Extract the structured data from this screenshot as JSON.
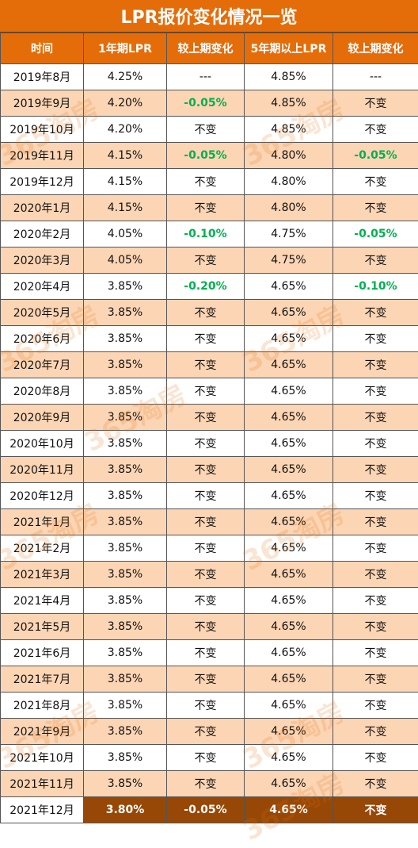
{
  "title": "LPR报价变化情况一览",
  "headers": [
    "时间",
    "1年期LPR",
    "较上期变化",
    "5年期以上LPR",
    "较上期变化"
  ],
  "rows": [
    [
      "2019年8月",
      "4.25%",
      "---",
      "4.85%",
      "---"
    ],
    [
      "2019年9月",
      "4.20%",
      "-0.05%",
      "4.85%",
      "不变"
    ],
    [
      "2019年10月",
      "4.20%",
      "不变",
      "4.85%",
      "不变"
    ],
    [
      "2019年11月",
      "4.15%",
      "-0.05%",
      "4.80%",
      "-0.05%"
    ],
    [
      "2019年12月",
      "4.15%",
      "不变",
      "4.80%",
      "不变"
    ],
    [
      "2020年1月",
      "4.15%",
      "不变",
      "4.80%",
      "不变"
    ],
    [
      "2020年2月",
      "4.05%",
      "-0.10%",
      "4.75%",
      "-0.05%"
    ],
    [
      "2020年3月",
      "4.05%",
      "不变",
      "4.75%",
      "不变"
    ],
    [
      "2020年4月",
      "3.85%",
      "-0.20%",
      "4.65%",
      "-0.10%"
    ],
    [
      "2020年5月",
      "3.85%",
      "不变",
      "4.65%",
      "不变"
    ],
    [
      "2020年6月",
      "3.85%",
      "不变",
      "4.65%",
      "不变"
    ],
    [
      "2020年7月",
      "3.85%",
      "不变",
      "4.65%",
      "不变"
    ],
    [
      "2020年8月",
      "3.85%",
      "不变",
      "4.65%",
      "不变"
    ],
    [
      "2020年9月",
      "3.85%",
      "不变",
      "4.65%",
      "不变"
    ],
    [
      "2020年10月",
      "3.85%",
      "不变",
      "4.65%",
      "不变"
    ],
    [
      "2020年11月",
      "3.85%",
      "不变",
      "4.65%",
      "不变"
    ],
    [
      "2020年12月",
      "3.85%",
      "不变",
      "4.65%",
      "不变"
    ],
    [
      "2021年1月",
      "3.85%",
      "不变",
      "4.65%",
      "不变"
    ],
    [
      "2021年2月",
      "3.85%",
      "不变",
      "4.65%",
      "不变"
    ],
    [
      "2021年3月",
      "3.85%",
      "不变",
      "4.65%",
      "不变"
    ],
    [
      "2021年4月",
      "3.85%",
      "不变",
      "4.65%",
      "不变"
    ],
    [
      "2021年5月",
      "3.85%",
      "不变",
      "4.65%",
      "不变"
    ],
    [
      "2021年6月",
      "3.85%",
      "不变",
      "4.65%",
      "不变"
    ],
    [
      "2021年7月",
      "3.85%",
      "不变",
      "4.65%",
      "不变"
    ],
    [
      "2021年8月",
      "3.85%",
      "不变",
      "4.65%",
      "不变"
    ],
    [
      "2021年9月",
      "3.85%",
      "不变",
      "4.65%",
      "不变"
    ],
    [
      "2021年10月",
      "3.85%",
      "不变",
      "4.65%",
      "不变"
    ],
    [
      "2021年11月",
      "3.85%",
      "不变",
      "4.65%",
      "不变"
    ],
    [
      "2021年12月",
      "3.80%",
      "-0.05%",
      "4.65%",
      "不变"
    ]
  ],
  "watermark": "365淘房",
  "colors": {
    "header_bg": "#E46D0A",
    "alt_row_bg": "#FCD5B4",
    "negative_text": "#00B050",
    "highlight_bg": "#974706"
  }
}
